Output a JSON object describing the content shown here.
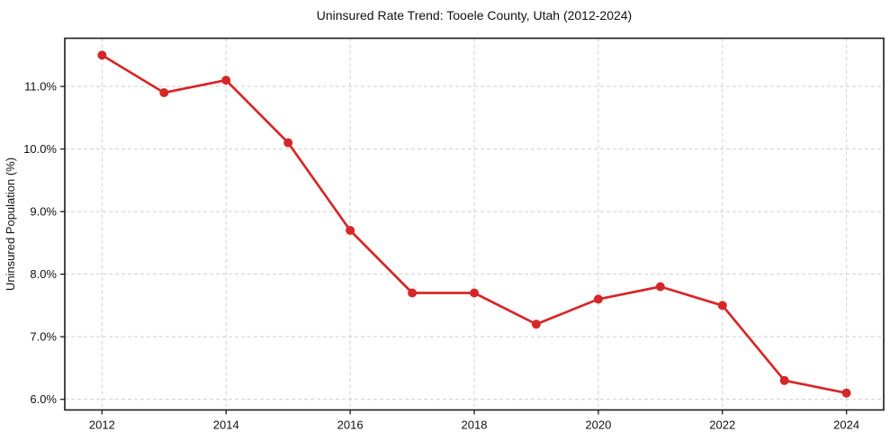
{
  "chart_data": {
    "type": "line",
    "title": "Uninsured Rate Trend: Tooele County, Utah (2012-2024)",
    "xlabel": "",
    "ylabel": "Uninsured Population (%)",
    "x": [
      2012,
      2013,
      2014,
      2015,
      2016,
      2017,
      2018,
      2019,
      2020,
      2021,
      2022,
      2023,
      2024
    ],
    "series": [
      {
        "name": "Uninsured rate",
        "values": [
          11.5,
          10.9,
          11.1,
          10.1,
          8.7,
          7.7,
          7.7,
          7.2,
          7.6,
          7.8,
          7.5,
          6.3,
          6.1
        ]
      }
    ],
    "xlim": [
      2011.4,
      2024.6
    ],
    "ylim": [
      5.83,
      11.77
    ],
    "xticks": [
      2012,
      2014,
      2016,
      2018,
      2020,
      2022,
      2024
    ],
    "xtick_labels": [
      "2012",
      "2014",
      "2016",
      "2018",
      "2020",
      "2022",
      "2024"
    ],
    "yticks": [
      6.0,
      7.0,
      8.0,
      9.0,
      10.0,
      11.0
    ],
    "ytick_labels": [
      "6.0%",
      "7.0%",
      "8.0%",
      "9.0%",
      "10.0%",
      "11.0%"
    ],
    "grid": true,
    "legend": "none",
    "line_color": "#d62728",
    "marker_color": "#d62728",
    "grid_color": "#cfcfcf",
    "spine_color": "#1a1a1a",
    "background_color": "#ffffff"
  }
}
